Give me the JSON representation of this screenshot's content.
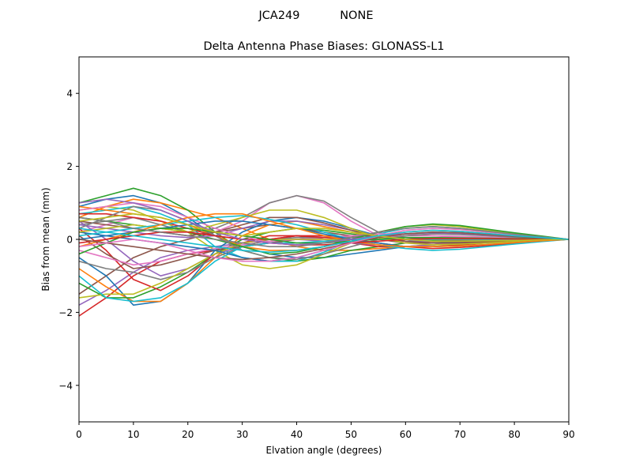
{
  "suptitle": "JCA249           NONE",
  "chart_data": {
    "type": "line",
    "title": "Delta Antenna Phase Biases: GLONASS-L1",
    "xlabel": "Elvation angle (degrees)",
    "ylabel": "Bias from mean (mm)",
    "xlim": [
      0,
      90
    ],
    "ylim": [
      -5,
      5
    ],
    "xticks": [
      0,
      10,
      20,
      30,
      40,
      50,
      60,
      70,
      80,
      90
    ],
    "yticks": [
      -4,
      -2,
      0,
      2,
      4
    ],
    "xtick_labels": [
      "0",
      "10",
      "20",
      "30",
      "40",
      "50",
      "60",
      "70",
      "80",
      "90"
    ],
    "ytick_labels": [
      "−4",
      "−2",
      "0",
      "2",
      "4"
    ],
    "grid": false,
    "legend": "none",
    "x": [
      0,
      5,
      10,
      15,
      20,
      25,
      30,
      35,
      40,
      45,
      50,
      55,
      60,
      65,
      70,
      75,
      80,
      85,
      90
    ],
    "series": [
      {
        "color": "#1f77b4",
        "values": [
          0.9,
          1.1,
          1.2,
          1.0,
          0.6,
          0.1,
          -0.2,
          -0.4,
          -0.5,
          -0.5,
          -0.4,
          -0.3,
          -0.2,
          -0.15,
          -0.1,
          -0.08,
          -0.05,
          -0.02,
          0
        ]
      },
      {
        "color": "#ff7f0e",
        "values": [
          0.6,
          0.9,
          1.1,
          1.0,
          0.8,
          0.6,
          0.3,
          0.0,
          -0.2,
          -0.3,
          -0.3,
          -0.25,
          -0.2,
          -0.15,
          -0.1,
          -0.08,
          -0.05,
          -0.02,
          0
        ]
      },
      {
        "color": "#2ca02c",
        "values": [
          1.0,
          1.2,
          1.4,
          1.2,
          0.8,
          0.2,
          -0.3,
          -0.5,
          -0.6,
          -0.5,
          -0.3,
          -0.2,
          -0.1,
          -0.1,
          -0.05,
          -0.04,
          -0.03,
          -0.01,
          0
        ]
      },
      {
        "color": "#d62728",
        "values": [
          -2.1,
          -1.6,
          -1.0,
          -0.6,
          -0.4,
          -0.3,
          -0.1,
          0.1,
          0.1,
          0.0,
          -0.1,
          -0.2,
          -0.2,
          -0.2,
          -0.15,
          -0.1,
          -0.06,
          -0.03,
          0
        ]
      },
      {
        "color": "#9467bd",
        "values": [
          -1.8,
          -1.4,
          -0.9,
          -0.5,
          -0.3,
          -0.2,
          -0.1,
          0.0,
          0.0,
          -0.05,
          -0.1,
          -0.15,
          -0.2,
          -0.15,
          -0.1,
          -0.08,
          -0.05,
          -0.02,
          0
        ]
      },
      {
        "color": "#8c564b",
        "values": [
          -1.5,
          -1.0,
          -0.5,
          -0.2,
          0.0,
          0.2,
          0.3,
          0.4,
          0.3,
          0.2,
          0.1,
          0.0,
          -0.1,
          -0.1,
          -0.08,
          -0.06,
          -0.04,
          -0.02,
          0
        ]
      },
      {
        "color": "#e377c2",
        "values": [
          0.2,
          0.4,
          0.6,
          0.5,
          0.3,
          0.2,
          0.5,
          1.0,
          1.2,
          1.0,
          0.5,
          0.1,
          -0.1,
          -0.15,
          -0.12,
          -0.1,
          -0.06,
          -0.03,
          0
        ]
      },
      {
        "color": "#7f7f7f",
        "values": [
          0.4,
          0.5,
          0.6,
          0.4,
          0.2,
          0.3,
          0.6,
          1.0,
          1.2,
          1.05,
          0.6,
          0.2,
          0.0,
          -0.1,
          -0.1,
          -0.08,
          -0.05,
          -0.02,
          0
        ]
      },
      {
        "color": "#bcbd22",
        "values": [
          0.8,
          0.9,
          0.8,
          0.5,
          0.2,
          -0.3,
          -0.7,
          -0.8,
          -0.7,
          -0.4,
          -0.1,
          0.2,
          0.35,
          0.4,
          0.35,
          0.25,
          0.15,
          0.07,
          0
        ]
      },
      {
        "color": "#17becf",
        "values": [
          0.7,
          0.8,
          0.9,
          0.7,
          0.4,
          -0.2,
          -0.5,
          -0.6,
          -0.6,
          -0.35,
          -0.05,
          0.15,
          0.3,
          0.35,
          0.3,
          0.22,
          0.14,
          0.06,
          0
        ]
      },
      {
        "color": "#1f77b4",
        "values": [
          -0.5,
          -1.0,
          -1.8,
          -1.7,
          -1.2,
          -0.3,
          0.2,
          0.5,
          0.6,
          0.5,
          0.3,
          0.1,
          0.0,
          -0.05,
          -0.05,
          -0.04,
          -0.03,
          -0.01,
          0
        ]
      },
      {
        "color": "#ff7f0e",
        "values": [
          -0.8,
          -1.3,
          -1.7,
          -1.7,
          -1.2,
          -0.5,
          0.1,
          0.4,
          0.5,
          0.35,
          0.2,
          0.05,
          -0.05,
          -0.05,
          -0.04,
          -0.03,
          -0.02,
          -0.01,
          0
        ]
      },
      {
        "color": "#2ca02c",
        "values": [
          -1.2,
          -1.6,
          -1.6,
          -1.3,
          -0.9,
          -0.4,
          0.0,
          0.2,
          0.3,
          0.25,
          0.15,
          0.05,
          0.0,
          -0.03,
          -0.03,
          -0.02,
          -0.02,
          -0.01,
          0
        ]
      },
      {
        "color": "#d62728",
        "values": [
          0.3,
          -0.3,
          -1.1,
          -1.4,
          -1.0,
          -0.4,
          -0.1,
          0.0,
          0.1,
          0.1,
          0.05,
          0.0,
          -0.05,
          -0.05,
          -0.04,
          -0.03,
          -0.02,
          -0.01,
          0
        ]
      },
      {
        "color": "#9467bd",
        "values": [
          0.5,
          0.0,
          -0.6,
          -1.0,
          -0.8,
          -0.4,
          -0.2,
          -0.1,
          0.0,
          0.05,
          0.05,
          0.0,
          -0.05,
          -0.05,
          -0.04,
          -0.03,
          -0.02,
          -0.01,
          0
        ]
      },
      {
        "color": "#8c564b",
        "values": [
          0.1,
          -0.4,
          -0.8,
          -0.7,
          -0.5,
          -0.3,
          -0.2,
          -0.1,
          0.0,
          0.05,
          0.1,
          0.1,
          0.05,
          0.0,
          -0.02,
          -0.02,
          -0.01,
          0.0,
          0
        ]
      },
      {
        "color": "#e377c2",
        "values": [
          -0.3,
          -0.5,
          -0.7,
          -0.6,
          -0.4,
          -0.25,
          -0.15,
          -0.05,
          0.0,
          0.05,
          0.1,
          0.15,
          0.15,
          0.1,
          0.05,
          0.03,
          0.02,
          0.01,
          0
        ]
      },
      {
        "color": "#7f7f7f",
        "values": [
          -0.6,
          -0.8,
          -0.9,
          -1.1,
          -0.9,
          -0.5,
          -0.2,
          0.0,
          0.05,
          0.05,
          0.05,
          0.05,
          0.05,
          0.03,
          0.02,
          0.01,
          0.01,
          0.0,
          0
        ]
      },
      {
        "color": "#bcbd22",
        "values": [
          -1.6,
          -1.5,
          -1.5,
          -1.2,
          -0.8,
          -0.4,
          -0.1,
          0.0,
          0.0,
          0.0,
          0.0,
          0.0,
          0.0,
          0.0,
          0.0,
          0.0,
          0.0,
          0.0,
          0
        ]
      },
      {
        "color": "#17becf",
        "values": [
          -1.0,
          -1.6,
          -1.7,
          -1.6,
          -1.2,
          -0.6,
          -0.2,
          -0.1,
          -0.1,
          -0.05,
          0.0,
          0.0,
          0.0,
          0.0,
          0.0,
          0.0,
          0.0,
          0.0,
          0
        ]
      },
      {
        "color": "#1f77b4",
        "values": [
          0.2,
          0.1,
          0.0,
          -0.1,
          -0.2,
          -0.3,
          -0.5,
          -0.6,
          -0.5,
          -0.3,
          -0.1,
          0.05,
          0.15,
          0.2,
          0.18,
          0.13,
          0.08,
          0.04,
          0
        ]
      },
      {
        "color": "#ff7f0e",
        "values": [
          0.9,
          0.8,
          0.7,
          0.6,
          0.4,
          0.1,
          -0.2,
          -0.3,
          -0.3,
          -0.2,
          -0.05,
          0.1,
          0.2,
          0.25,
          0.22,
          0.16,
          0.1,
          0.05,
          0
        ]
      },
      {
        "color": "#2ca02c",
        "values": [
          0.6,
          0.5,
          0.4,
          0.3,
          0.2,
          0.0,
          -0.2,
          -0.4,
          -0.35,
          -0.2,
          0.0,
          0.2,
          0.35,
          0.42,
          0.38,
          0.28,
          0.18,
          0.09,
          0
        ]
      },
      {
        "color": "#d62728",
        "values": [
          0.7,
          0.7,
          0.6,
          0.5,
          0.3,
          0.1,
          0.0,
          0.0,
          0.1,
          0.05,
          0.0,
          -0.1,
          -0.2,
          -0.25,
          -0.22,
          -0.17,
          -0.11,
          -0.05,
          0
        ]
      },
      {
        "color": "#9467bd",
        "values": [
          0.4,
          0.3,
          0.2,
          0.1,
          0.05,
          0.1,
          0.3,
          0.5,
          0.5,
          0.4,
          0.25,
          0.1,
          0.0,
          -0.05,
          -0.05,
          -0.04,
          -0.03,
          -0.01,
          0
        ]
      },
      {
        "color": "#8c564b",
        "values": [
          0.5,
          0.4,
          0.3,
          0.2,
          0.1,
          0.2,
          0.4,
          0.6,
          0.6,
          0.45,
          0.25,
          0.05,
          -0.05,
          -0.1,
          -0.1,
          -0.07,
          -0.04,
          -0.02,
          0
        ]
      },
      {
        "color": "#e377c2",
        "values": [
          0.8,
          0.9,
          1.0,
          0.9,
          0.6,
          0.3,
          0.1,
          -0.1,
          -0.15,
          -0.1,
          0.0,
          0.05,
          0.1,
          0.1,
          0.08,
          0.06,
          0.04,
          0.02,
          0
        ]
      },
      {
        "color": "#7f7f7f",
        "values": [
          0.3,
          0.6,
          0.9,
          0.8,
          0.5,
          0.1,
          -0.3,
          -0.5,
          -0.55,
          -0.4,
          -0.2,
          0.0,
          0.1,
          0.15,
          0.13,
          0.1,
          0.06,
          0.03,
          0
        ]
      },
      {
        "color": "#bcbd22",
        "values": [
          0.2,
          0.3,
          0.4,
          0.3,
          0.2,
          0.4,
          0.6,
          0.8,
          0.8,
          0.6,
          0.3,
          0.05,
          -0.1,
          -0.15,
          -0.13,
          -0.1,
          -0.06,
          -0.03,
          0
        ]
      },
      {
        "color": "#17becf",
        "values": [
          0.1,
          0.2,
          0.3,
          0.4,
          0.5,
          0.6,
          0.65,
          0.55,
          0.4,
          0.2,
          0.0,
          -0.15,
          -0.25,
          -0.3,
          -0.27,
          -0.2,
          -0.13,
          -0.06,
          0
        ]
      },
      {
        "color": "#1f77b4",
        "values": [
          0.0,
          0.1,
          0.2,
          0.3,
          0.4,
          0.5,
          0.5,
          0.4,
          0.3,
          0.15,
          0.0,
          -0.1,
          -0.2,
          -0.2,
          -0.18,
          -0.14,
          -0.09,
          -0.04,
          0
        ]
      },
      {
        "color": "#ff7f0e",
        "values": [
          -0.2,
          0.0,
          0.2,
          0.4,
          0.6,
          0.7,
          0.7,
          0.5,
          0.3,
          0.1,
          -0.05,
          -0.15,
          -0.2,
          -0.2,
          -0.18,
          -0.14,
          -0.09,
          -0.04,
          0
        ]
      },
      {
        "color": "#2ca02c",
        "values": [
          -0.4,
          -0.1,
          0.2,
          0.3,
          0.3,
          0.2,
          0.1,
          0.0,
          -0.1,
          -0.1,
          -0.05,
          0.0,
          0.05,
          0.05,
          0.04,
          0.03,
          0.02,
          0.01,
          0
        ]
      },
      {
        "color": "#d62728",
        "values": [
          -0.1,
          0.0,
          0.1,
          0.2,
          0.2,
          0.1,
          0.0,
          -0.1,
          -0.15,
          -0.15,
          -0.1,
          -0.05,
          0.0,
          0.02,
          0.02,
          0.02,
          0.01,
          0.0,
          0
        ]
      },
      {
        "color": "#9467bd",
        "values": [
          1.0,
          1.1,
          1.0,
          0.8,
          0.5,
          0.2,
          0.0,
          -0.1,
          -0.15,
          -0.1,
          0.0,
          0.1,
          0.15,
          0.18,
          0.16,
          0.12,
          0.08,
          0.04,
          0
        ]
      },
      {
        "color": "#8c564b",
        "values": [
          0.0,
          -0.1,
          -0.2,
          -0.3,
          -0.4,
          -0.5,
          -0.55,
          -0.5,
          -0.4,
          -0.25,
          -0.1,
          0.05,
          0.15,
          0.2,
          0.18,
          0.13,
          0.08,
          0.04,
          0
        ]
      },
      {
        "color": "#e377c2",
        "values": [
          -0.2,
          -0.1,
          0.0,
          -0.1,
          -0.3,
          -0.5,
          -0.6,
          -0.6,
          -0.5,
          -0.3,
          -0.1,
          0.1,
          0.25,
          0.3,
          0.27,
          0.2,
          0.13,
          0.06,
          0
        ]
      },
      {
        "color": "#7f7f7f",
        "values": [
          0.6,
          0.5,
          0.3,
          0.2,
          0.1,
          0.0,
          -0.1,
          -0.2,
          -0.2,
          -0.1,
          0.05,
          0.2,
          0.3,
          0.35,
          0.3,
          0.22,
          0.14,
          0.07,
          0
        ]
      },
      {
        "color": "#bcbd22",
        "values": [
          0.5,
          0.6,
          0.7,
          0.6,
          0.4,
          0.2,
          0.1,
          0.2,
          0.3,
          0.3,
          0.2,
          0.1,
          0.0,
          -0.05,
          -0.05,
          -0.04,
          -0.03,
          -0.01,
          0
        ]
      },
      {
        "color": "#17becf",
        "values": [
          0.3,
          0.2,
          0.1,
          0.0,
          -0.1,
          -0.2,
          -0.3,
          -0.35,
          -0.3,
          -0.2,
          -0.05,
          0.1,
          0.2,
          0.25,
          0.22,
          0.16,
          0.1,
          0.05,
          0
        ]
      }
    ]
  }
}
